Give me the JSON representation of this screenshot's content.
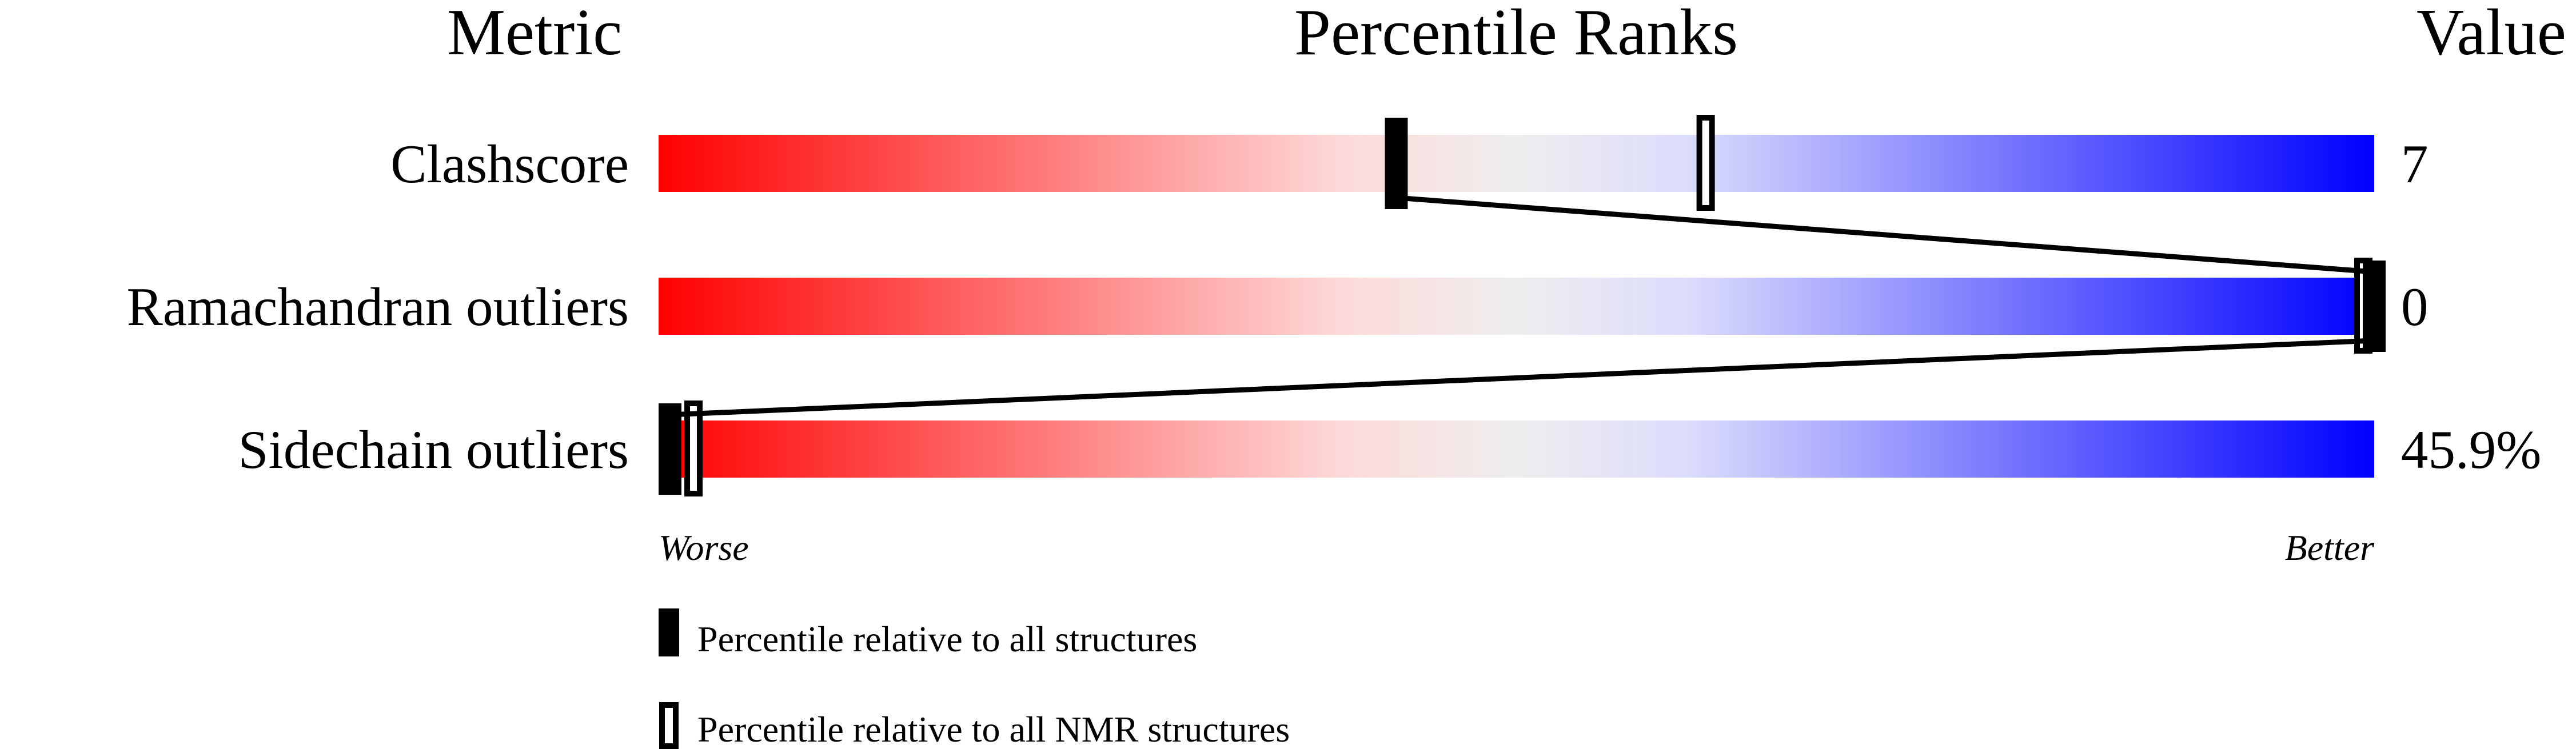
{
  "chart_data": {
    "type": "percentile-slider",
    "headers": {
      "metric": "Metric",
      "percentile": "Percentile Ranks",
      "value": "Value"
    },
    "axis": {
      "min": 0,
      "max": 100,
      "left_label": "Worse",
      "right_label": "Better"
    },
    "gradient_colors": [
      "#ff0000",
      "#fddada",
      "#eeeeee",
      "#dcdcfc",
      "#0000ff"
    ],
    "rows": [
      {
        "metric": "Clashscore",
        "value": "7",
        "percentile_all": 43,
        "percentile_nmr": 61
      },
      {
        "metric": "Ramachandran outliers",
        "value": "0",
        "percentile_all": 100,
        "percentile_nmr": 100
      },
      {
        "metric": "Sidechain outliers",
        "value": "45.9%",
        "percentile_all": 0,
        "percentile_nmr": 2
      }
    ],
    "legend": [
      {
        "marker": "filled",
        "label": "Percentile relative to all structures"
      },
      {
        "marker": "open",
        "label": "Percentile relative to all NMR structures"
      }
    ]
  }
}
